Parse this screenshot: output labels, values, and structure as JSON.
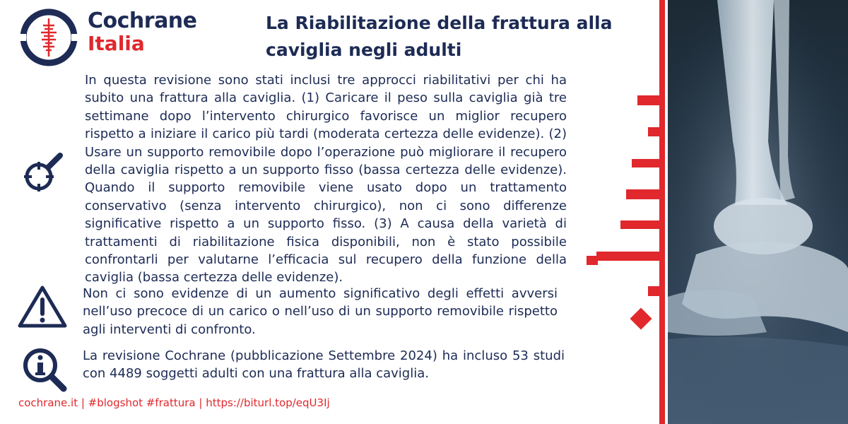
{
  "logo": {
    "line1": "Cochrane",
    "line2": "Italia"
  },
  "title": "La Riabilitazione della frattura alla caviglia negli adulti",
  "sections": [
    {
      "icon": "magnifier-target-icon",
      "text": "In questa revisione sono stati inclusi tre approcci riabilitativi per chi ha subito una frattura alla caviglia. (1) Caricare il peso sulla caviglia già tre settimane dopo l’intervento chirurgico favorisce un miglior recupero rispetto a iniziare il carico più tardi (moderata certezza delle evidenze). (2) Usare un supporto removibile dopo l’operazione può migliorare il recupero della caviglia rispetto a un supporto fisso (bassa certezza delle evidenze). Quando il supporto removibile viene usato dopo un trattamento conservativo (senza intervento chirurgico), non ci sono differenze significative rispetto a un supporto fisso. (3) A causa della varietà di trattamenti di riabilitazione fisica disponibili, non è stato possibile confrontarli per valutarne l’efficacia sul recupero della funzione della caviglia (bassa certezza delle evidenze)."
    },
    {
      "icon": "warning-triangle-icon",
      "text": "Non ci sono evidenze di un aumento significativo degli effetti avversi nell’uso precoce di un carico o nell’uso di un supporto removibile rispetto agli interventi di confronto."
    },
    {
      "icon": "info-magnifier-icon",
      "text": "La revisione Cochrane (pubblicazione Settembre 2024) ha incluso 53 studi con 4489 soggetti adulti con una frattura alla caviglia."
    }
  ],
  "footer": "cochrane.it |  #blogshot #frattura | https://biturl.top/eqU3Ij",
  "colors": {
    "navy": "#1d2b55",
    "red": "#e0282d"
  },
  "image": "ankle-xray-image"
}
